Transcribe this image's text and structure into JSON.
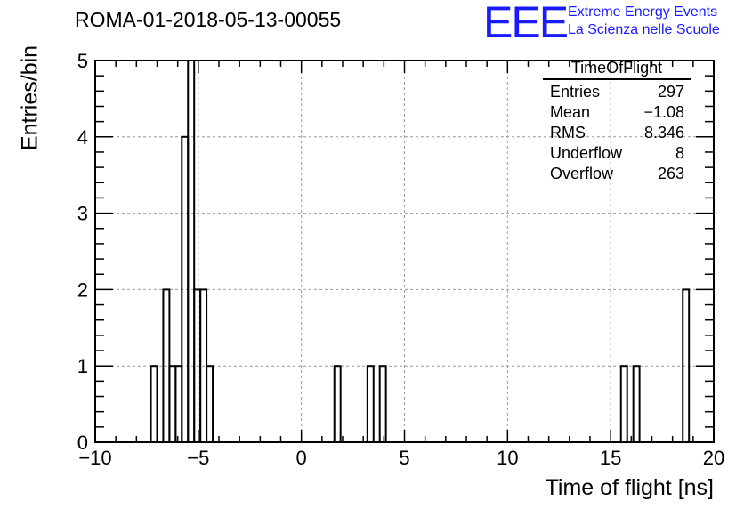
{
  "chart_data": {
    "type": "bar",
    "title": "ROMA-01-2018-05-13-00055",
    "xlabel": "Time of flight [ns]",
    "ylabel": "Entries/bin",
    "xlim": [
      -10,
      20
    ],
    "ylim": [
      0,
      5
    ],
    "xticks": [
      -10,
      -5,
      0,
      5,
      10,
      15,
      20
    ],
    "xtick_labels": [
      "−10",
      "−5",
      "0",
      "5",
      "10",
      "15",
      "20"
    ],
    "yticks": [
      0,
      1,
      2,
      3,
      4,
      5
    ],
    "ytick_labels": [
      "0",
      "1",
      "2",
      "3",
      "4",
      "5"
    ],
    "grid": true,
    "bin_width": 0.3,
    "bins": [
      {
        "x0": -7.3,
        "x1": -7.0,
        "value": 1
      },
      {
        "x0": -6.7,
        "x1": -6.4,
        "value": 2
      },
      {
        "x0": -6.4,
        "x1": -6.1,
        "value": 1
      },
      {
        "x0": -6.1,
        "x1": -5.8,
        "value": 1
      },
      {
        "x0": -5.8,
        "x1": -5.5,
        "value": 4
      },
      {
        "x0": -5.5,
        "x1": -5.2,
        "value": 5
      },
      {
        "x0": -5.2,
        "x1": -4.9,
        "value": 2
      },
      {
        "x0": -4.9,
        "x1": -4.6,
        "value": 2
      },
      {
        "x0": -4.6,
        "x1": -4.3,
        "value": 1
      },
      {
        "x0": 1.6,
        "x1": 1.9,
        "value": 1
      },
      {
        "x0": 3.2,
        "x1": 3.5,
        "value": 1
      },
      {
        "x0": 3.8,
        "x1": 4.1,
        "value": 1
      },
      {
        "x0": 15.5,
        "x1": 15.8,
        "value": 1
      },
      {
        "x0": 16.1,
        "x1": 16.4,
        "value": 1
      },
      {
        "x0": 18.5,
        "x1": 18.8,
        "value": 2
      }
    ]
  },
  "stats": {
    "title": "TimeOfFlight",
    "rows": [
      {
        "label": "Entries",
        "value": "297"
      },
      {
        "label": "Mean",
        "value": "−1.08"
      },
      {
        "label": "RMS",
        "value": "8.346"
      },
      {
        "label": "Underflow",
        "value": "8"
      },
      {
        "label": "Overflow",
        "value": "263"
      }
    ]
  },
  "logo": {
    "text": "EEE",
    "line1": "Extreme Energy Events",
    "line2": "La Scienza nelle Scuole",
    "color": "#1a1aff"
  }
}
